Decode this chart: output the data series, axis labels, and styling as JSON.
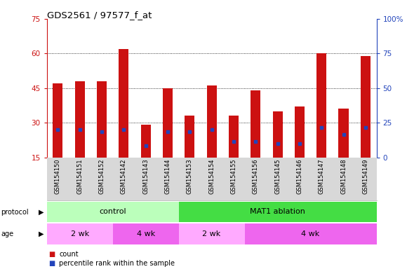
{
  "title": "GDS2561 / 97577_f_at",
  "samples": [
    "GSM154150",
    "GSM154151",
    "GSM154152",
    "GSM154142",
    "GSM154143",
    "GSM154144",
    "GSM154153",
    "GSM154154",
    "GSM154155",
    "GSM154156",
    "GSM154145",
    "GSM154146",
    "GSM154147",
    "GSM154148",
    "GSM154149"
  ],
  "count_values": [
    47,
    48,
    48,
    62,
    29,
    45,
    33,
    46,
    33,
    44,
    35,
    37,
    60,
    36,
    59
  ],
  "percentile_values": [
    27,
    27,
    26,
    27,
    20,
    26,
    26,
    27,
    22,
    22,
    21,
    21,
    28,
    25,
    28
  ],
  "bar_bottom": 15,
  "ylim_left": [
    15,
    75
  ],
  "ylim_right": [
    0,
    100
  ],
  "yticks_left": [
    15,
    30,
    45,
    60,
    75
  ],
  "yticks_right": [
    0,
    25,
    50,
    75,
    100
  ],
  "ytick_labels_right": [
    "0",
    "25",
    "50",
    "75",
    "100%"
  ],
  "bar_color": "#cc1111",
  "percentile_color": "#2244bb",
  "bg_color": "#ffffff",
  "xlabels_bg": "#d8d8d8",
  "protocol_control_color": "#aaffaa",
  "protocol_ablation_color": "#44ee44",
  "age_light_color": "#ffaaff",
  "age_dark_color": "#ee66ee",
  "protocol_groups": [
    {
      "label": "control",
      "start": 0,
      "end": 6,
      "color": "#bbffbb"
    },
    {
      "label": "MAT1 ablation",
      "start": 6,
      "end": 15,
      "color": "#44dd44"
    }
  ],
  "age_groups": [
    {
      "label": "2 wk",
      "start": 0,
      "end": 3,
      "color": "#ffaaff"
    },
    {
      "label": "4 wk",
      "start": 3,
      "end": 6,
      "color": "#ee66ee"
    },
    {
      "label": "2 wk",
      "start": 6,
      "end": 9,
      "color": "#ffaaff"
    },
    {
      "label": "4 wk",
      "start": 9,
      "end": 15,
      "color": "#ee66ee"
    }
  ],
  "legend_count_label": "count",
  "legend_pct_label": "percentile rank within the sample",
  "left_axis_color": "#cc1111",
  "right_axis_color": "#2244bb",
  "grid_yticks": [
    30,
    45,
    60
  ]
}
